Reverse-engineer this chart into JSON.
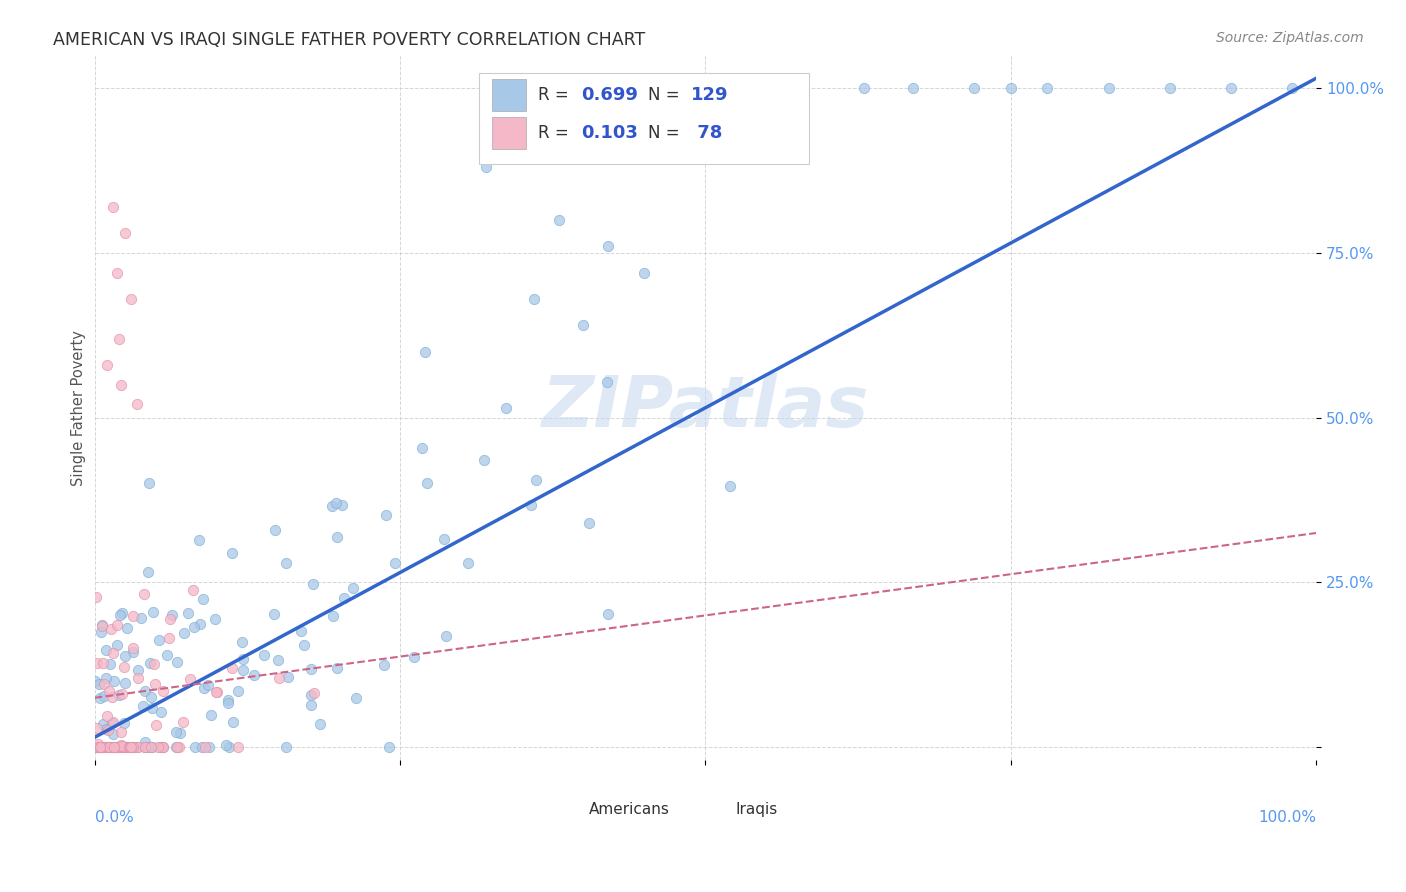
{
  "title": "AMERICAN VS IRAQI SINGLE FATHER POVERTY CORRELATION CHART",
  "source": "Source: ZipAtlas.com",
  "ylabel": "Single Father Poverty",
  "legend_americans": "Americans",
  "legend_iraqis": "Iraqis",
  "watermark": "ZIPatlas",
  "american_color": "#a8c8e8",
  "american_edge_color": "#7bafd4",
  "iraqi_color": "#f4b8c8",
  "iraqi_edge_color": "#e090a8",
  "american_line_color": "#3366cc",
  "iraqi_line_color": "#cc6688",
  "grid_color": "#cccccc",
  "background_color": "#ffffff",
  "title_color": "#333333",
  "right_axis_color": "#5599ee",
  "r_color": "#3355cc",
  "black_text": "#333333",
  "american_r": 0.699,
  "iraqi_r": 0.103,
  "american_n": 129,
  "iraqi_n": 78,
  "american_slope": 1.0,
  "american_intercept": 0.015,
  "iraqi_slope": 0.25,
  "iraqi_intercept": 0.075,
  "seed_american": 42,
  "seed_iraqi": 77
}
